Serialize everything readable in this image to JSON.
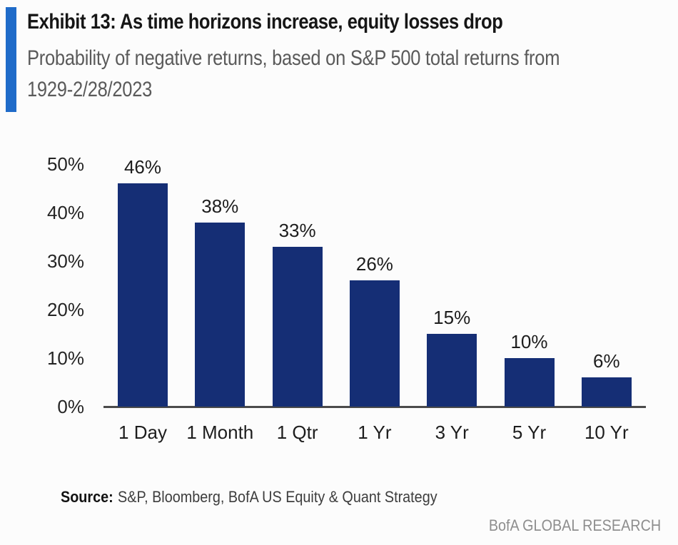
{
  "header": {
    "title": "Exhibit 13: As time horizons increase, equity losses drop",
    "subtitle_line1": "Probability of negative returns, based on S&P 500 total returns from",
    "subtitle_line2": "1929-2/28/2023",
    "accent_color": "#1f6bc9"
  },
  "chart_data": {
    "type": "bar",
    "title": "Exhibit 13: As time horizons increase, equity losses drop",
    "subtitle": "Probability of negative returns, based on S&P 500 total returns from 1929-2/28/2023",
    "categories": [
      "1 Day",
      "1 Month",
      "1 Qtr",
      "1 Yr",
      "3 Yr",
      "5 Yr",
      "10 Yr"
    ],
    "values": [
      46,
      38,
      33,
      26,
      15,
      10,
      6
    ],
    "data_labels": [
      "46%",
      "38%",
      "33%",
      "26%",
      "15%",
      "10%",
      "6%"
    ],
    "y_ticks": [
      {
        "label": "50%",
        "value": 50
      },
      {
        "label": "40%",
        "value": 40
      },
      {
        "label": "30%",
        "value": 30
      },
      {
        "label": "20%",
        "value": 20
      },
      {
        "label": "10%",
        "value": 10
      },
      {
        "label": "0%",
        "value": 0
      }
    ],
    "ylim": [
      0,
      50
    ],
    "xlabel": "",
    "ylabel": "",
    "grid": false,
    "legend": false,
    "bar_color": "#152e75",
    "axis_color": "#4b4b4b"
  },
  "footer": {
    "source_label": "Source:",
    "source_text": "S&P, Bloomberg, BofA US Equity & Quant Strategy",
    "brand": "BofA GLOBAL RESEARCH"
  }
}
